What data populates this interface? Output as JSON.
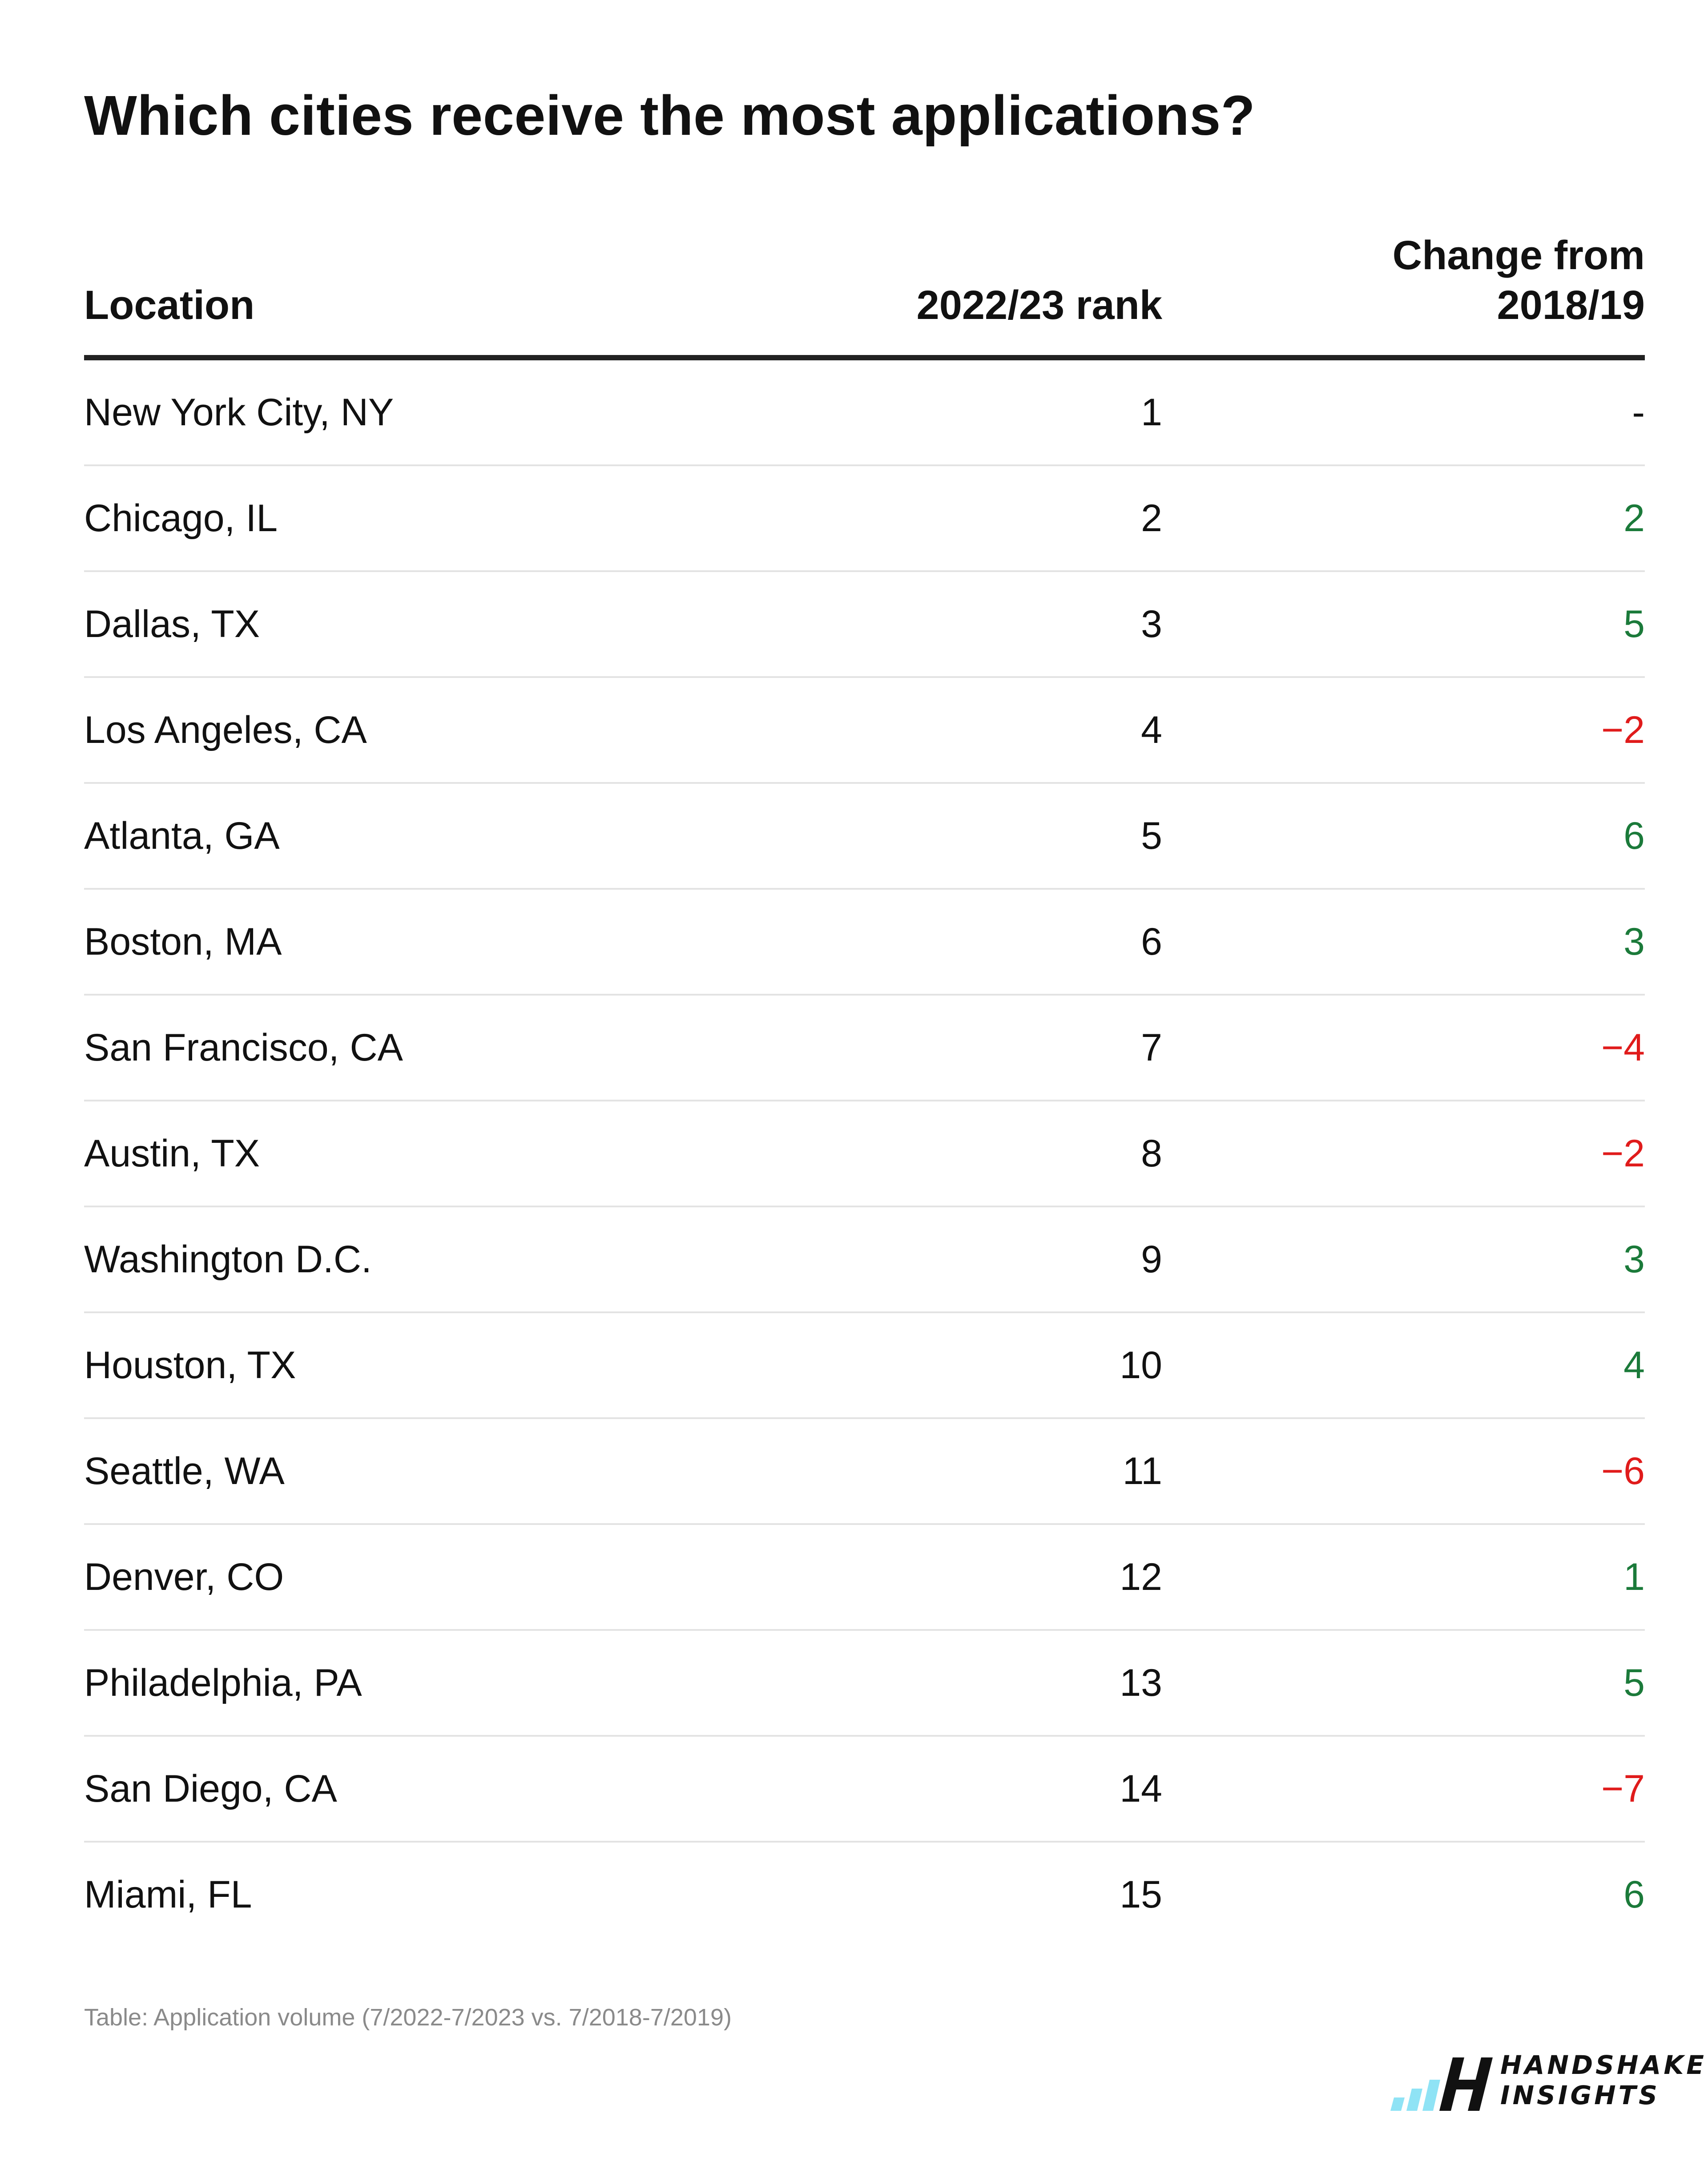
{
  "chart_data": {
    "type": "table",
    "title": "Which cities receive the most applications?",
    "columns": [
      "Location",
      "2022/23 rank",
      "Change from 2018/19"
    ],
    "change_header_lines": [
      "Change from",
      "2018/19"
    ],
    "rows": [
      {
        "location": "New York City, NY",
        "rank": "1",
        "change": "-",
        "trend": "neutral"
      },
      {
        "location": "Chicago, IL",
        "rank": "2",
        "change": "2",
        "trend": "up"
      },
      {
        "location": "Dallas, TX",
        "rank": "3",
        "change": "5",
        "trend": "up"
      },
      {
        "location": "Los Angeles, CA",
        "rank": "4",
        "change": "−2",
        "trend": "down"
      },
      {
        "location": "Atlanta, GA",
        "rank": "5",
        "change": "6",
        "trend": "up"
      },
      {
        "location": "Boston, MA",
        "rank": "6",
        "change": "3",
        "trend": "up"
      },
      {
        "location": "San Francisco, CA",
        "rank": "7",
        "change": "−4",
        "trend": "down"
      },
      {
        "location": "Austin, TX",
        "rank": "8",
        "change": "−2",
        "trend": "down"
      },
      {
        "location": "Washington D.C.",
        "rank": "9",
        "change": "3",
        "trend": "up"
      },
      {
        "location": "Houston, TX",
        "rank": "10",
        "change": "4",
        "trend": "up"
      },
      {
        "location": "Seattle, WA",
        "rank": "11",
        "change": "−6",
        "trend": "down"
      },
      {
        "location": "Denver, CO",
        "rank": "12",
        "change": "1",
        "trend": "up"
      },
      {
        "location": "Philadelphia, PA",
        "rank": "13",
        "change": "5",
        "trend": "up"
      },
      {
        "location": "San Diego, CA",
        "rank": "14",
        "change": "−7",
        "trend": "down"
      },
      {
        "location": "Miami, FL",
        "rank": "15",
        "change": "6",
        "trend": "up"
      }
    ],
    "colors": {
      "positive": "#1b7a3a",
      "negative": "#e01b1b",
      "neutral": "#111111"
    }
  },
  "source": "Table: Application volume (7/2022-7/2023 vs. 7/2018-7/2019)",
  "logo": {
    "line1": "HANDSHAKE",
    "line2": "INSIGHTS",
    "icon": "handshake-bars-h-icon",
    "accent": "#8fe3f5"
  }
}
